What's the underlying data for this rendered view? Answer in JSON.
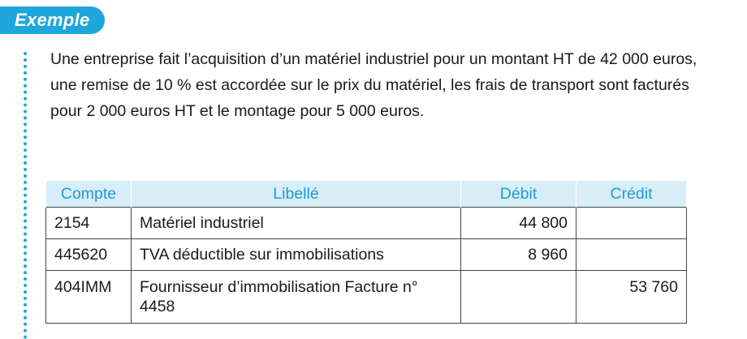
{
  "badge": "Exemple",
  "intro": "Une entreprise fait l’acquisition d’un matériel industriel pour un montant HT de 42 000 euros, une remise de 10 % est accordée sur le prix du matériel, les frais de transport sont facturés pour 2 000 euros HT et le montage pour 5 000 euros.",
  "table": {
    "headers": {
      "compte": "Compte",
      "libelle": "Libellé",
      "debit": "Débit",
      "credit": "Crédit"
    },
    "rows": [
      {
        "compte": "2154",
        "libelle": "Matériel industriel",
        "debit": "44 800",
        "credit": ""
      },
      {
        "compte": "445620",
        "libelle": "TVA déductible sur immobilisations",
        "debit": "8 960",
        "credit": ""
      },
      {
        "compte": "404IMM",
        "libelle": "Fournisseur d’immobilisation Facture n° 4458",
        "debit": "",
        "credit": "53 760"
      }
    ]
  },
  "colors": {
    "accent": "#1fa6dc",
    "header_bg": "#d7eef9",
    "header_text": "#1f9bd6"
  }
}
